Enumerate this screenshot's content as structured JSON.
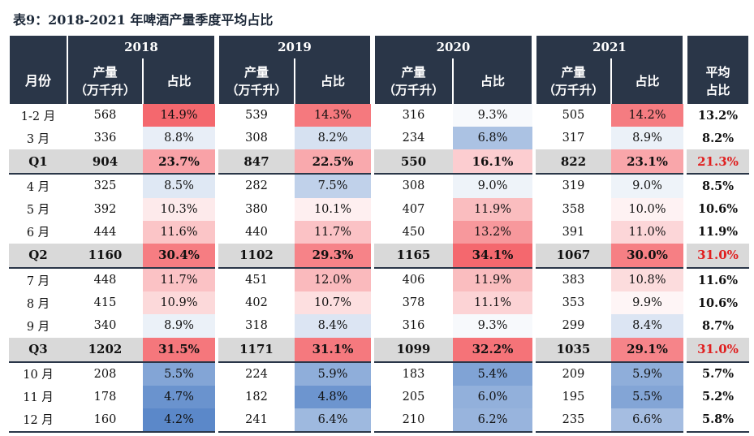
{
  "title": "表9：2018-2021 年啤酒产量季度平均占比",
  "header": {
    "years": [
      "2018",
      "2019",
      "2020",
      "2021"
    ],
    "month_label": "月份",
    "output_label_line1": "产量",
    "output_label_line2": "（万千升）",
    "share_label": "占比",
    "avg_label_line1": "平均",
    "avg_label_line2": "占比"
  },
  "rows": [
    {
      "month": "1-2 月",
      "v2018": "568",
      "p2018": "14.9%",
      "v2019": "539",
      "p2019": "14.3%",
      "v2020": "316",
      "p2020": "9.3%",
      "v2021": "505",
      "p2021": "14.2%",
      "avg": "13.2%"
    },
    {
      "month": "3 月",
      "v2018": "336",
      "p2018": "8.8%",
      "v2019": "308",
      "p2019": "8.2%",
      "v2020": "234",
      "p2020": "6.8%",
      "v2021": "317",
      "p2021": "8.9%",
      "avg": "8.2%"
    },
    {
      "month": "Q1",
      "quarter": true,
      "v2018": "904",
      "p2018": "23.7%",
      "v2019": "847",
      "p2019": "22.5%",
      "v2020": "550",
      "p2020": "16.1%",
      "v2021": "822",
      "p2021": "23.1%",
      "avg": "21.3%"
    },
    {
      "month": "4 月",
      "v2018": "325",
      "p2018": "8.5%",
      "v2019": "282",
      "p2019": "7.5%",
      "v2020": "308",
      "p2020": "9.0%",
      "v2021": "319",
      "p2021": "9.0%",
      "avg": "8.5%"
    },
    {
      "month": "5 月",
      "v2018": "392",
      "p2018": "10.3%",
      "v2019": "380",
      "p2019": "10.1%",
      "v2020": "407",
      "p2020": "11.9%",
      "v2021": "358",
      "p2021": "10.0%",
      "avg": "10.6%"
    },
    {
      "month": "6 月",
      "v2018": "444",
      "p2018": "11.6%",
      "v2019": "440",
      "p2019": "11.7%",
      "v2020": "450",
      "p2020": "13.2%",
      "v2021": "391",
      "p2021": "11.0%",
      "avg": "11.9%"
    },
    {
      "month": "Q2",
      "quarter": true,
      "v2018": "1160",
      "p2018": "30.4%",
      "v2019": "1102",
      "p2019": "29.3%",
      "v2020": "1165",
      "p2020": "34.1%",
      "v2021": "1067",
      "p2021": "30.0%",
      "avg": "31.0%"
    },
    {
      "month": "7 月",
      "v2018": "448",
      "p2018": "11.7%",
      "v2019": "451",
      "p2019": "12.0%",
      "v2020": "406",
      "p2020": "11.9%",
      "v2021": "383",
      "p2021": "10.8%",
      "avg": "11.6%"
    },
    {
      "month": "8 月",
      "v2018": "415",
      "p2018": "10.9%",
      "v2019": "402",
      "p2019": "10.7%",
      "v2020": "378",
      "p2020": "11.1%",
      "v2021": "353",
      "p2021": "9.9%",
      "avg": "10.6%"
    },
    {
      "month": "9 月",
      "v2018": "340",
      "p2018": "8.9%",
      "v2019": "318",
      "p2019": "8.4%",
      "v2020": "316",
      "p2020": "9.3%",
      "v2021": "299",
      "p2021": "8.4%",
      "avg": "8.7%"
    },
    {
      "month": "Q3",
      "quarter": true,
      "v2018": "1202",
      "p2018": "31.5%",
      "v2019": "1171",
      "p2019": "31.1%",
      "v2020": "1099",
      "p2020": "32.2%",
      "v2021": "1035",
      "p2021": "29.1%",
      "avg": "31.0%"
    },
    {
      "month": "10 月",
      "v2018": "208",
      "p2018": "5.5%",
      "v2019": "224",
      "p2019": "5.9%",
      "v2020": "183",
      "p2020": "5.4%",
      "v2021": "209",
      "p2021": "5.9%",
      "avg": "5.7%"
    },
    {
      "month": "11 月",
      "v2018": "178",
      "p2018": "4.7%",
      "v2019": "182",
      "p2019": "4.8%",
      "v2020": "205",
      "p2020": "6.0%",
      "v2021": "195",
      "p2021": "5.5%",
      "avg": "5.2%"
    },
    {
      "month": "12 月",
      "v2018": "160",
      "p2018": "4.2%",
      "v2019": "241",
      "p2019": "6.4%",
      "v2020": "210",
      "p2020": "6.2%",
      "v2021": "235",
      "p2021": "6.6%",
      "avg": "5.8%"
    }
  ]
}
